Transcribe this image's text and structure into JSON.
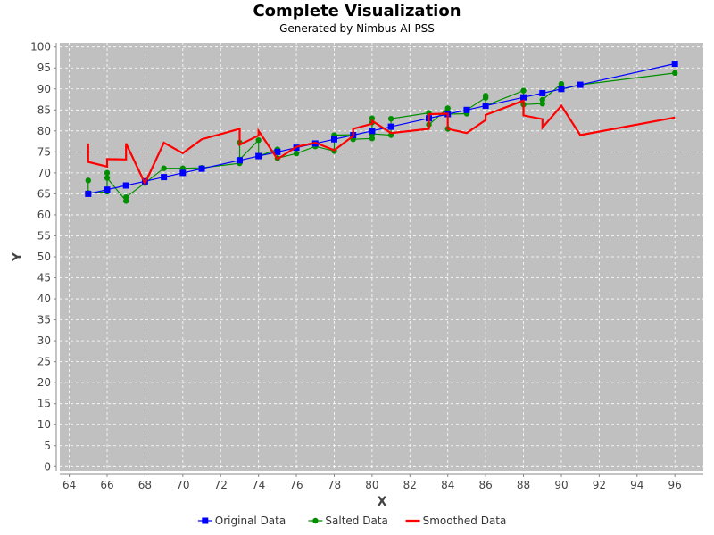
{
  "chart_data": {
    "type": "line",
    "title": "Complete Visualization",
    "subtitle": "Generated by Nimbus AI-PSS",
    "xlabel": "X",
    "ylabel": "Y",
    "xlim": [
      63.5,
      97.5
    ],
    "ylim": [
      -1,
      101
    ],
    "x_ticks": [
      64,
      66,
      68,
      70,
      72,
      74,
      76,
      78,
      80,
      82,
      84,
      86,
      88,
      90,
      92,
      94,
      96
    ],
    "y_ticks": [
      0,
      5,
      10,
      15,
      20,
      25,
      30,
      35,
      40,
      45,
      50,
      55,
      60,
      65,
      70,
      75,
      80,
      85,
      90,
      95,
      100
    ],
    "grid": true,
    "legend_position": "bottom",
    "series": [
      {
        "name": "Original Data",
        "color": "#0000ff",
        "marker": "square",
        "x": [
          65,
          66,
          67,
          68,
          69,
          70,
          71,
          73,
          74,
          75,
          76,
          77,
          78,
          79,
          80,
          81,
          83,
          84,
          85,
          86,
          88,
          89,
          90,
          91,
          96
        ],
        "y": [
          65,
          66,
          67,
          68,
          69,
          70,
          71,
          73,
          74,
          75,
          76,
          77,
          78,
          79,
          80,
          81,
          83,
          84,
          85,
          86,
          88,
          89,
          90,
          91,
          96
        ]
      },
      {
        "name": "Salted Data",
        "color": "#008f00",
        "marker": "circle",
        "x": [
          65,
          65,
          66,
          66,
          66,
          67,
          67,
          68,
          69,
          70,
          71,
          73,
          73,
          73,
          74,
          74,
          75,
          75,
          76,
          77,
          78,
          78,
          78,
          79,
          79,
          80,
          80,
          80,
          80,
          81,
          81,
          83,
          83,
          84,
          84,
          84,
          85,
          85,
          86,
          86,
          86,
          88,
          88,
          89,
          89,
          90,
          90,
          91,
          96
        ],
        "y": [
          68.2,
          65.2,
          65.5,
          70.0,
          68.8,
          63.3,
          64.2,
          67.6,
          71.1,
          71.1,
          71.2,
          72.3,
          77.2,
          73.2,
          77.8,
          74.0,
          75.6,
          73.5,
          74.6,
          76.3,
          75.2,
          78.6,
          79.0,
          79.1,
          78.0,
          78.2,
          83.0,
          82.0,
          79.3,
          79.0,
          82.9,
          84.3,
          81.5,
          85.4,
          80.5,
          84.0,
          84.1,
          85.0,
          87.9,
          88.4,
          86.0,
          89.6,
          86.3,
          86.5,
          87.4,
          91.2,
          89.9,
          91.0,
          93.8
        ]
      },
      {
        "name": "Smoothed Data",
        "color": "#ff0000",
        "marker": "none",
        "x": [
          65,
          65,
          66,
          66,
          67,
          67,
          68,
          69,
          70,
          71,
          73,
          73,
          74,
          74,
          75,
          76,
          77,
          78,
          79,
          79,
          80,
          80,
          81,
          83,
          83,
          84,
          84,
          85,
          86,
          86,
          88,
          88,
          89,
          89,
          90,
          91,
          96
        ],
        "y": [
          77.0,
          72.6,
          71.5,
          73.3,
          73.2,
          77.0,
          67.5,
          77.2,
          74.7,
          78.0,
          80.5,
          76.7,
          78.9,
          80.0,
          73.3,
          76.2,
          77.2,
          75.4,
          78.8,
          80.5,
          81.7,
          82.4,
          79.5,
          80.5,
          84.0,
          84.1,
          80.5,
          79.5,
          82.6,
          83.8,
          87.2,
          83.7,
          82.8,
          80.8,
          86.0,
          79.0,
          83.2
        ]
      }
    ]
  }
}
